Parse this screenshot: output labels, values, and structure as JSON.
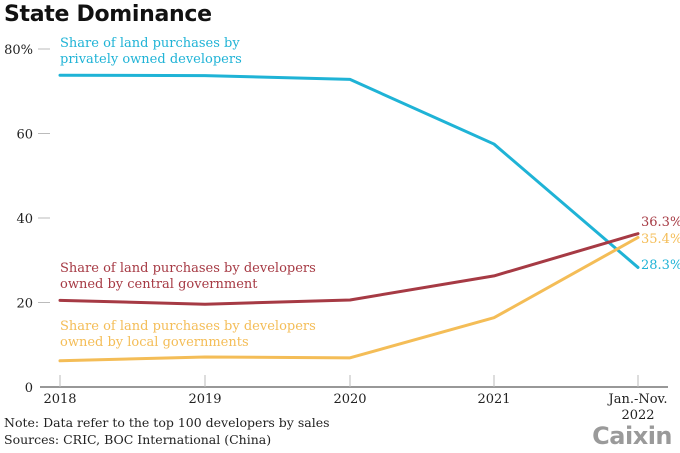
{
  "chart_data": {
    "type": "line",
    "title": "State Dominance",
    "xlabel": "",
    "ylabel": "",
    "categories": [
      "2018",
      "2019",
      "2020",
      "2021",
      "Jan.-Nov. 2022"
    ],
    "x_tick_labels": [
      [
        "2018"
      ],
      [
        "2019"
      ],
      [
        "2020"
      ],
      [
        "2021"
      ],
      [
        "Jan.-Nov.",
        "2022"
      ]
    ],
    "ylim": [
      0,
      80
    ],
    "y_ticks": [
      0,
      20,
      40,
      60,
      80
    ],
    "y_tick_labels": [
      "0",
      "20",
      "40",
      "60",
      "80%"
    ],
    "grid": false,
    "series": [
      {
        "name": "Share of land purchases by privately owned developers",
        "label_lines": [
          "Share of land purchases by",
          "privately owned developers"
        ],
        "color": "#1fb3d6",
        "values": [
          73.8,
          73.7,
          72.8,
          57.5,
          28.3
        ],
        "end_label": "28.3%"
      },
      {
        "name": "Share of land purchases by developers owned by central government",
        "label_lines": [
          "Share of land purchases by developers",
          "owned by central government"
        ],
        "color": "#a63a44",
        "values": [
          20.5,
          19.6,
          20.6,
          26.3,
          36.3
        ],
        "end_label": "36.3%"
      },
      {
        "name": "Share of land purchases by developers owned by local governments",
        "label_lines": [
          "Share of land purchases by developers",
          "owned by local governments"
        ],
        "color": "#f4bd57",
        "values": [
          6.2,
          7.1,
          6.9,
          16.4,
          35.4
        ],
        "end_label": "35.4%"
      }
    ],
    "annotations": {
      "note": "Note: Data refer to the top 100 developers by sales",
      "sources": "Sources: CRIC, BOC International (China)"
    }
  },
  "branding": {
    "logo": "Caixin"
  }
}
